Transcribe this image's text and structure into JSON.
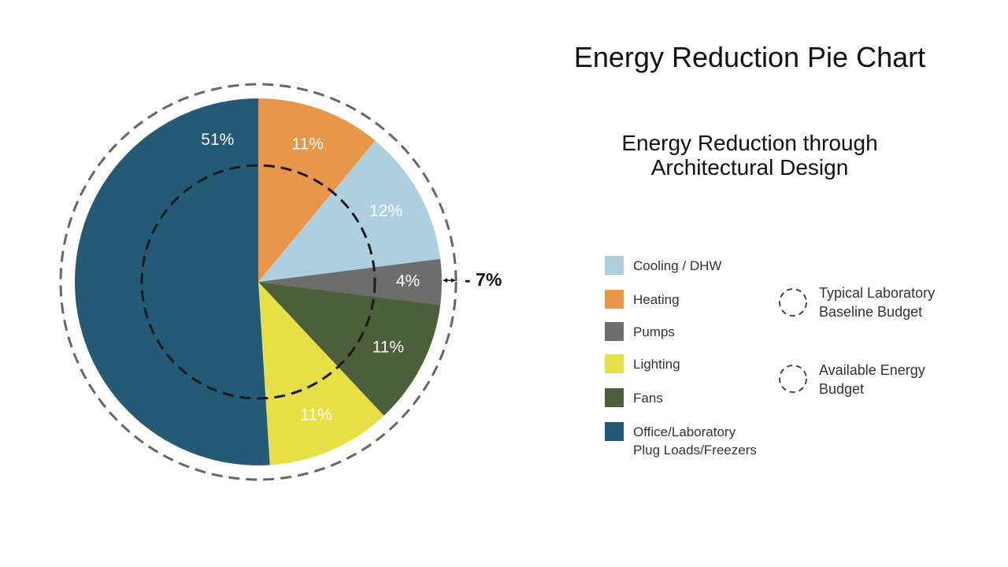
{
  "chart_data": {
    "type": "pie",
    "title": "Energy Reduction Pie Chart",
    "subtitle": "Energy Reduction through\nArchitectural Design",
    "values": [
      11,
      12,
      4,
      11,
      11,
      51
    ],
    "value_labels": [
      "11%",
      "12%",
      "4%",
      "11%",
      "11%",
      "51%"
    ],
    "colors": [
      "#e8964a",
      "#aecfdf",
      "#6d6d6d",
      "#4b5f3b",
      "#e6df45",
      "#245a75"
    ],
    "legend": [
      {
        "label": "Cooling / DHW",
        "color": "#aecfdf"
      },
      {
        "label": "Heating",
        "color": "#e8964a"
      },
      {
        "label": "Pumps",
        "color": "#6d6d6d"
      },
      {
        "label": "Lighting",
        "color": "#e6df45"
      },
      {
        "label": "Fans",
        "color": "#4b5f3b"
      },
      {
        "label": "Office/Laboratory\nPlug Loads/Freezers",
        "color": "#245a75"
      }
    ],
    "budget_legend": [
      "Typical Laboratory\nBaseline Budget",
      "Available Energy\nBudget"
    ],
    "annotation": "- 7%"
  }
}
